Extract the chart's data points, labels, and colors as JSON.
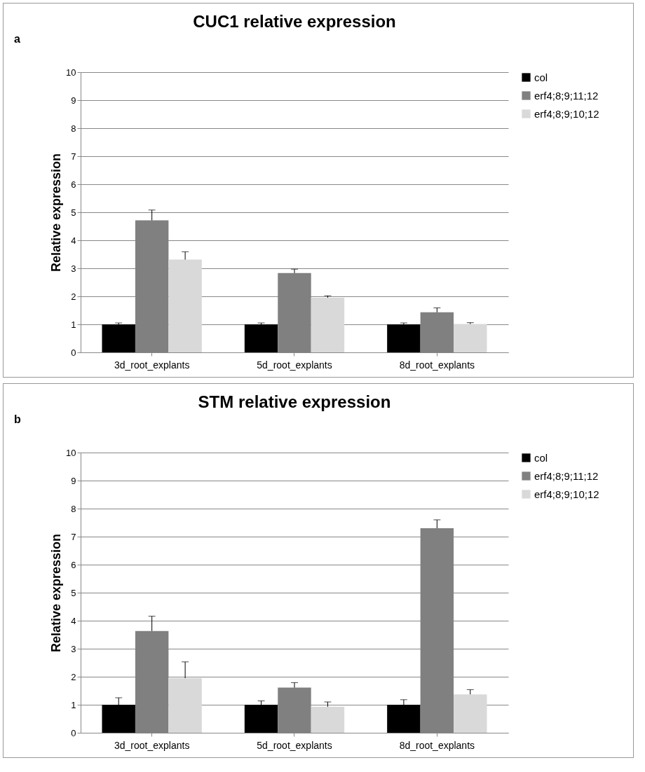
{
  "chart_data": [
    {
      "type": "bar",
      "title": "CUC1 relative expression",
      "ylabel": "Relative expression",
      "annotations": [
        "a"
      ],
      "categories": [
        "3d_root_explants",
        "5d_root_explants",
        "8d_root_explants"
      ],
      "ylim": [
        0,
        10
      ],
      "yticks": [
        0,
        1,
        2,
        3,
        4,
        5,
        6,
        7,
        8,
        9,
        10
      ],
      "grid": "y",
      "legend": "right",
      "series": [
        {
          "name": "col",
          "color": "#000000",
          "values": [
            1.0,
            1.0,
            1.0
          ],
          "errors": [
            [
              1.0,
              1.05
            ],
            [
              1.0,
              1.05
            ],
            [
              1.0,
              1.05
            ]
          ]
        },
        {
          "name": "erf4;8;9;11;12",
          "color": "#808080",
          "values": [
            4.71,
            2.83,
            1.43
          ],
          "errors": [
            [
              4.71,
              5.08
            ],
            [
              2.83,
              2.97
            ],
            [
              1.43,
              1.59
            ]
          ]
        },
        {
          "name": "erf4;8;9;10;12",
          "color": "#d9d9d9",
          "values": [
            3.31,
            1.95,
            1.01
          ],
          "errors": [
            [
              3.31,
              3.59
            ],
            [
              1.95,
              2.02
            ],
            [
              1.01,
              1.06
            ]
          ]
        }
      ]
    },
    {
      "type": "bar",
      "title": "STM relative expression",
      "ylabel": "Relative expression",
      "annotations": [
        "b"
      ],
      "categories": [
        "3d_root_explants",
        "5d_root_explants",
        "8d_root_explants"
      ],
      "ylim": [
        0,
        10
      ],
      "yticks": [
        0,
        1,
        2,
        3,
        4,
        5,
        6,
        7,
        8,
        9,
        10
      ],
      "grid": "y",
      "legend": "right",
      "series": [
        {
          "name": "col",
          "color": "#000000",
          "values": [
            1.0,
            1.0,
            1.0
          ],
          "errors": [
            [
              1.0,
              1.25
            ],
            [
              1.0,
              1.14
            ],
            [
              1.0,
              1.18
            ]
          ]
        },
        {
          "name": "erf4;8;9;11;12",
          "color": "#808080",
          "values": [
            3.63,
            1.61,
            7.3
          ],
          "errors": [
            [
              3.63,
              4.16
            ],
            [
              1.61,
              1.79
            ],
            [
              7.3,
              7.6
            ]
          ]
        },
        {
          "name": "erf4;8;9;10;12",
          "color": "#d9d9d9",
          "values": [
            1.95,
            0.93,
            1.37
          ],
          "errors": [
            [
              1.95,
              2.53
            ],
            [
              0.93,
              1.1
            ],
            [
              1.37,
              1.54
            ]
          ]
        }
      ]
    }
  ]
}
